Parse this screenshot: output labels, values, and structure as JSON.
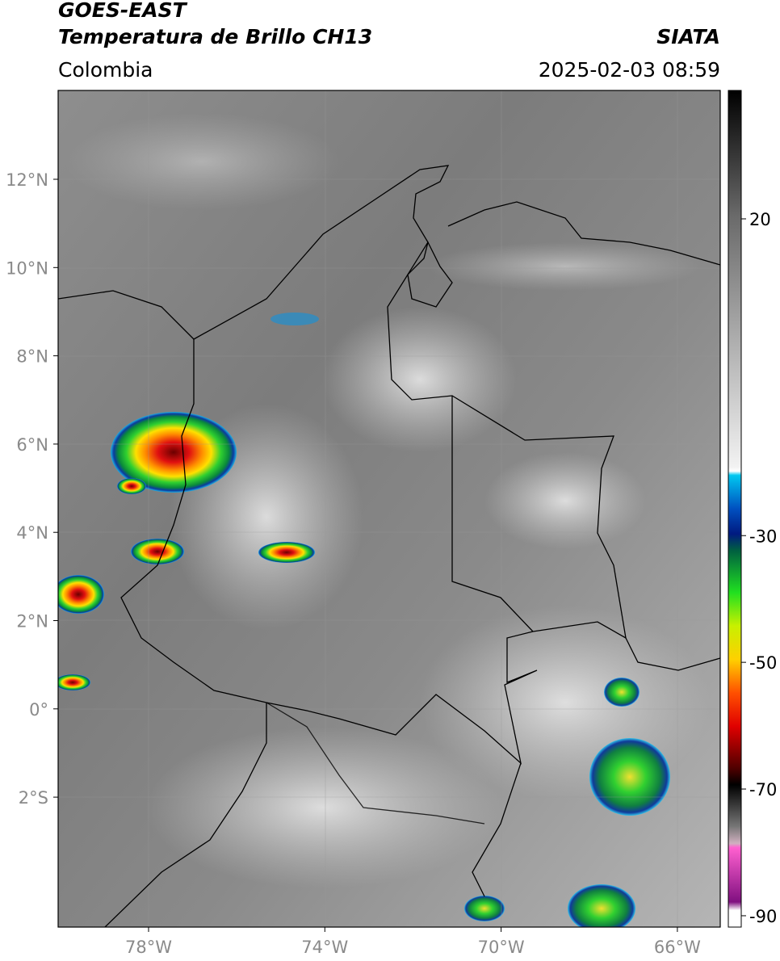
{
  "header": {
    "source": "GOES-EAST",
    "product": "Temperatura de Brillo CH13",
    "organization": "SIATA",
    "region": "Colombia",
    "timestamp": "2025-02-03 08:59"
  },
  "map": {
    "lon_ticks": [
      "78°W",
      "74°W",
      "70°W",
      "66°W"
    ],
    "lat_ticks": [
      "12°N",
      "10°N",
      "8°N",
      "6°N",
      "4°N",
      "2°N",
      "0°",
      "2°S"
    ]
  },
  "colorbar": {
    "ticks": [
      20,
      -30,
      -50,
      -70,
      -90
    ]
  }
}
